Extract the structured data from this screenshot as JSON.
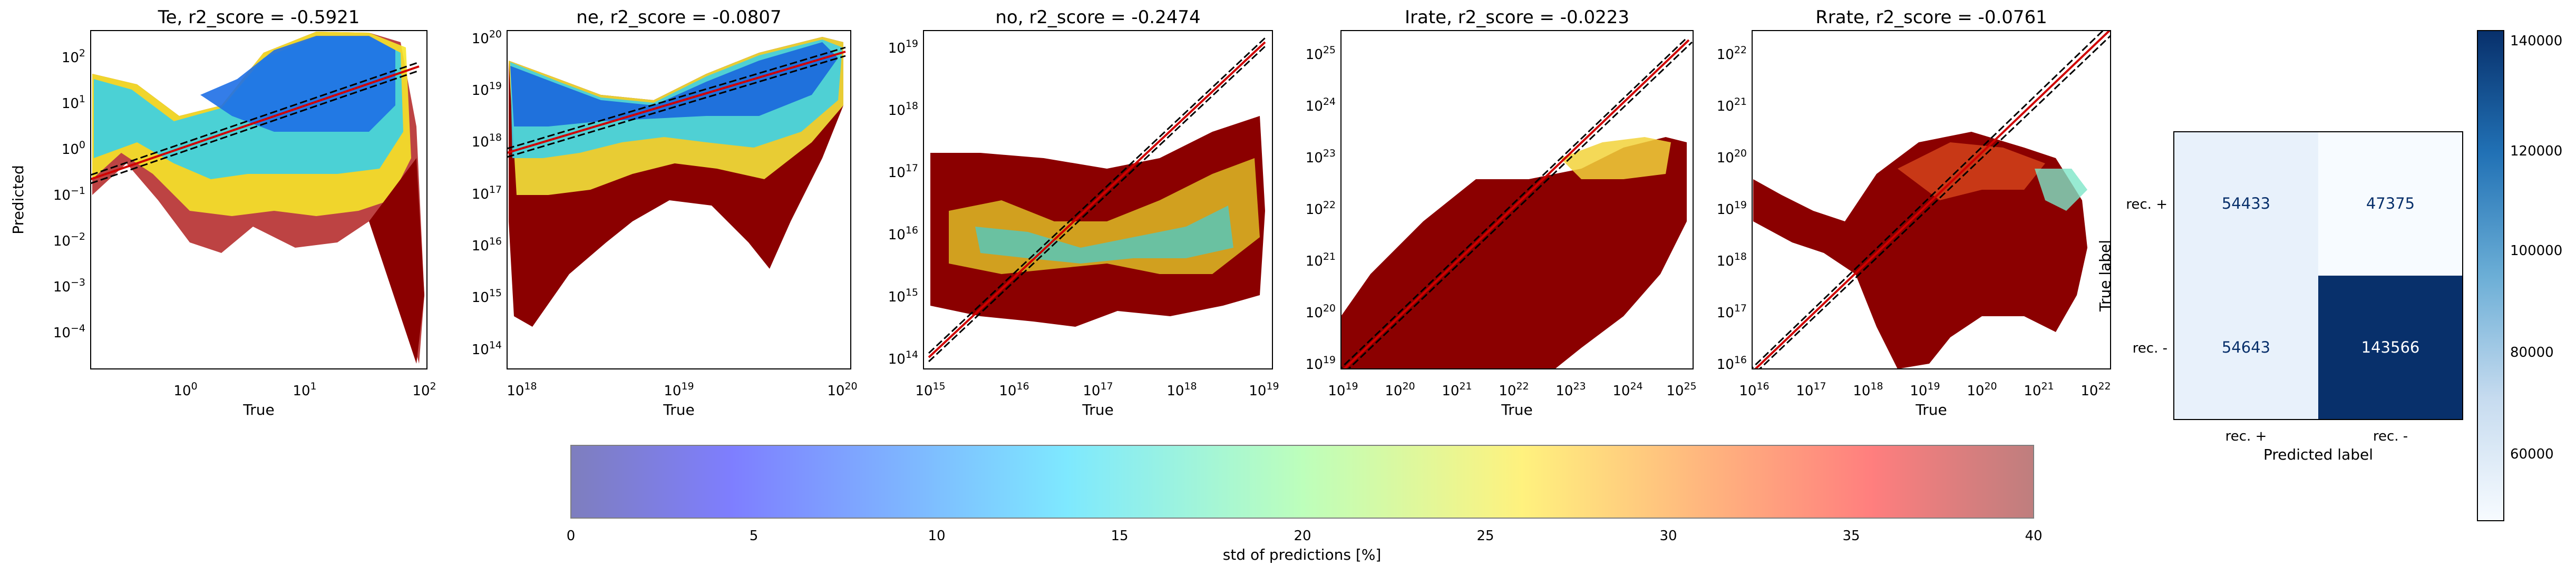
{
  "scatter_panels": [
    {
      "title": "Te, r2_score = -0.5921",
      "xlabel": "True",
      "ylabel": "Predicted",
      "x_ticks": [
        "10^0",
        "10^1",
        "10^2"
      ],
      "y_ticks": [
        "10^2",
        "10^1",
        "10^0",
        "10^-1",
        "10^-2",
        "10^-3",
        "10^-4"
      ]
    },
    {
      "title": "ne, r2_score = -0.0807",
      "xlabel": "True",
      "ylabel": "",
      "x_ticks": [
        "10^18",
        "10^19",
        "10^20"
      ],
      "y_ticks": [
        "10^20",
        "10^19",
        "10^18",
        "10^17",
        "10^16",
        "10^15",
        "10^14"
      ]
    },
    {
      "title": "no, r2_score = -0.2474",
      "xlabel": "True",
      "ylabel": "",
      "x_ticks": [
        "10^15",
        "10^16",
        "10^17",
        "10^18",
        "10^19"
      ],
      "y_ticks": [
        "10^19",
        "10^18",
        "10^17",
        "10^16",
        "10^15",
        "10^14"
      ]
    },
    {
      "title": "Irate, r2_score = -0.0223",
      "xlabel": "True",
      "ylabel": "",
      "x_ticks": [
        "10^19",
        "10^20",
        "10^21",
        "10^22",
        "10^23",
        "10^24",
        "10^25"
      ],
      "y_ticks": [
        "10^25",
        "10^24",
        "10^23",
        "10^22",
        "10^21",
        "10^20",
        "10^19"
      ]
    },
    {
      "title": "Rrate, r2_score = -0.0761",
      "xlabel": "True",
      "ylabel": "",
      "x_ticks": [
        "10^16",
        "10^17",
        "10^18",
        "10^19",
        "10^20",
        "10^21",
        "10^22"
      ],
      "y_ticks": [
        "10^22",
        "10^21",
        "10^20",
        "10^19",
        "10^18",
        "10^17",
        "10^16"
      ]
    }
  ],
  "chart_data": [
    {
      "type": "scatter",
      "title": "Te, r2_score = -0.5921",
      "xlabel": "True",
      "ylabel": "Predicted",
      "xscale": "log",
      "yscale": "log",
      "xlim": [
        0.2,
        100
      ],
      "ylim": [
        2e-05,
        400
      ],
      "reference_lines": [
        "y = x (red)",
        "dashed black bounds"
      ],
      "series": [
        {
          "name": "",
          "x": [
            0.25,
            0.4,
            1,
            3,
            10,
            30,
            60,
            80
          ],
          "y": [
            30,
            1,
            0.5,
            0.3,
            2,
            100,
            100,
            0.01
          ],
          "std_pct": [
            10,
            18,
            15,
            22,
            12,
            10,
            35,
            40
          ]
        }
      ]
    },
    {
      "type": "scatter",
      "title": "ne, r2_score = -0.0807",
      "xlabel": "True",
      "xscale": "log",
      "yscale": "log",
      "xlim": [
        7e+17,
        1.2e+20
      ],
      "ylim": [
        50000000000000.0,
        2e+20
      ],
      "series": [
        {
          "name": "",
          "x": [
            9e+17,
            2e+18,
            1e+19,
            4e+19,
            1e+20
          ],
          "y": [
            5e+19,
            1e+17,
            2e+18,
            1e+17,
            1e+20
          ],
          "std_pct": [
            12,
            40,
            15,
            30,
            12
          ]
        }
      ]
    },
    {
      "type": "scatter",
      "title": "no, r2_score = -0.2474",
      "xlabel": "True",
      "xscale": "log",
      "yscale": "log",
      "xlim": [
        700000000000000.0,
        1.5e+19
      ],
      "ylim": [
        100000000000000.0,
        2e+19
      ],
      "series": [
        {
          "name": "",
          "x": [
            1000000000000000.0,
            1e+16,
            1e+17,
            1e+18,
            1e+19
          ],
          "y": [
            1e+17,
            1e+16,
            3e+16,
            1e+16,
            3e+17
          ],
          "std_pct": [
            40,
            25,
            35,
            30,
            20
          ]
        }
      ]
    },
    {
      "type": "scatter",
      "title": "Irate, r2_score = -0.0223",
      "xlabel": "True",
      "xscale": "log",
      "yscale": "log",
      "xlim": [
        1e+19,
        3e+25
      ],
      "ylim": [
        1e+19,
        3e+25
      ],
      "series": [
        {
          "name": "",
          "x": [
            1e+19,
            1e+21,
            1e+22,
            1e+23,
            1e+25
          ],
          "y": [
            1e+20,
            1e+21,
            1e+22,
            1e+23,
            1e+23
          ],
          "std_pct": [
            40,
            40,
            40,
            25,
            35
          ]
        }
      ]
    },
    {
      "type": "scatter",
      "title": "Rrate, r2_score = -0.0761",
      "xlabel": "True",
      "xscale": "log",
      "yscale": "log",
      "xlim": [
        1e+16,
        3e+22
      ],
      "ylim": [
        1e+16,
        3e+22
      ],
      "series": [
        {
          "name": "",
          "x": [
            1e+16,
            1e+18,
            1e+19,
            1e+20,
            1e+21
          ],
          "y": [
            1e+19,
            1e+18,
            1e+20,
            1e+19,
            1e+19
          ],
          "std_pct": [
            40,
            40,
            35,
            20,
            35
          ]
        }
      ]
    },
    {
      "type": "heatmap",
      "title": "",
      "xlabel": "Predicted label",
      "ylabel": "True label",
      "x_categories": [
        "rec. +",
        "rec. -"
      ],
      "y_categories": [
        "rec. +",
        "rec. -"
      ],
      "values": [
        [
          54433,
          47375
        ],
        [
          54643,
          143566
        ]
      ],
      "colorbar": {
        "min": 47375,
        "max": 143566,
        "ticks": [
          "60000",
          "80000",
          "100000",
          "120000",
          "140000"
        ]
      }
    },
    {
      "type": "colorbar",
      "label": "std of predictions [%]",
      "range": [
        0,
        40
      ],
      "ticks": [
        "0",
        "5",
        "10",
        "15",
        "20",
        "25",
        "30",
        "35",
        "40"
      ]
    }
  ],
  "confusion_matrix": {
    "xlabel": "Predicted label",
    "ylabel": "True label",
    "col_labels": [
      "rec. +",
      "rec. -"
    ],
    "row_labels": [
      "rec. +",
      "rec. -"
    ],
    "cells": [
      "54433",
      "47375",
      "54643",
      "143566"
    ],
    "cbar_ticks": [
      "140000",
      "120000",
      "100000",
      "80000",
      "60000"
    ]
  },
  "std_colorbar": {
    "label": "std of predictions [%]",
    "ticks": [
      "0",
      "5",
      "10",
      "15",
      "20",
      "25",
      "30",
      "35",
      "40"
    ]
  }
}
